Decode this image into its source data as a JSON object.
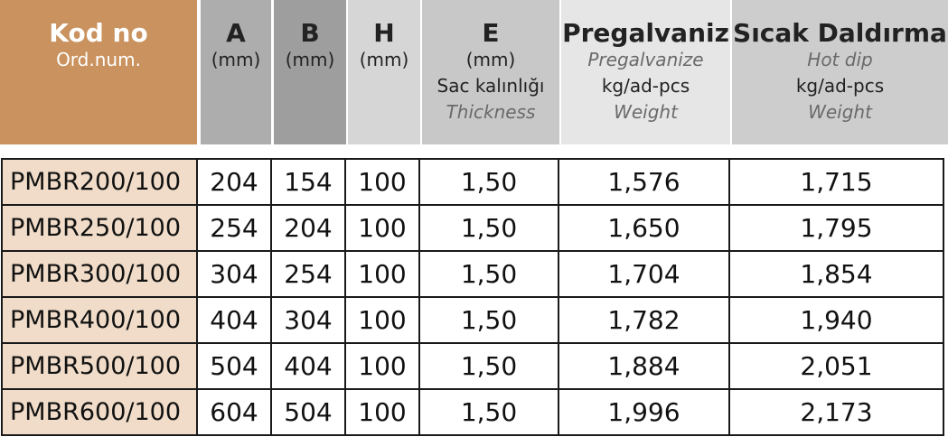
{
  "headers": {
    "code": {
      "main": "Kod no",
      "sub": "Ord.num."
    },
    "a": {
      "main": "A",
      "unit": "(mm)"
    },
    "b": {
      "main": "B",
      "unit": "(mm)"
    },
    "h": {
      "main": "H",
      "unit": "(mm)"
    },
    "e": {
      "main": "E",
      "unit": "(mm)",
      "tr": "Sac kalınlığı",
      "en": "Thickness"
    },
    "pregalvaniz": {
      "main": "Pregalvaniz",
      "en": "Pregalvanize",
      "unit": "kg/ad-pcs",
      "en2": "Weight"
    },
    "sicak": {
      "main": "Sıcak Daldırma",
      "en": "Hot dip",
      "unit": "kg/ad-pcs",
      "en2": "Weight"
    }
  },
  "rows": [
    {
      "code": "PMBR200/100",
      "a": "204",
      "b": "154",
      "h": "100",
      "e": "1,50",
      "pg": "1,576",
      "sd": "1,715"
    },
    {
      "code": "PMBR250/100",
      "a": "254",
      "b": "204",
      "h": "100",
      "e": "1,50",
      "pg": "1,650",
      "sd": "1,795"
    },
    {
      "code": "PMBR300/100",
      "a": "304",
      "b": "254",
      "h": "100",
      "e": "1,50",
      "pg": "1,704",
      "sd": "1,854"
    },
    {
      "code": "PMBR400/100",
      "a": "404",
      "b": "304",
      "h": "100",
      "e": "1,50",
      "pg": "1,782",
      "sd": "1,940"
    },
    {
      "code": "PMBR500/100",
      "a": "504",
      "b": "404",
      "h": "100",
      "e": "1,50",
      "pg": "1,884",
      "sd": "2,051"
    },
    {
      "code": "PMBR600/100",
      "a": "604",
      "b": "504",
      "h": "100",
      "e": "1,50",
      "pg": "1,996",
      "sd": "2,173"
    }
  ]
}
